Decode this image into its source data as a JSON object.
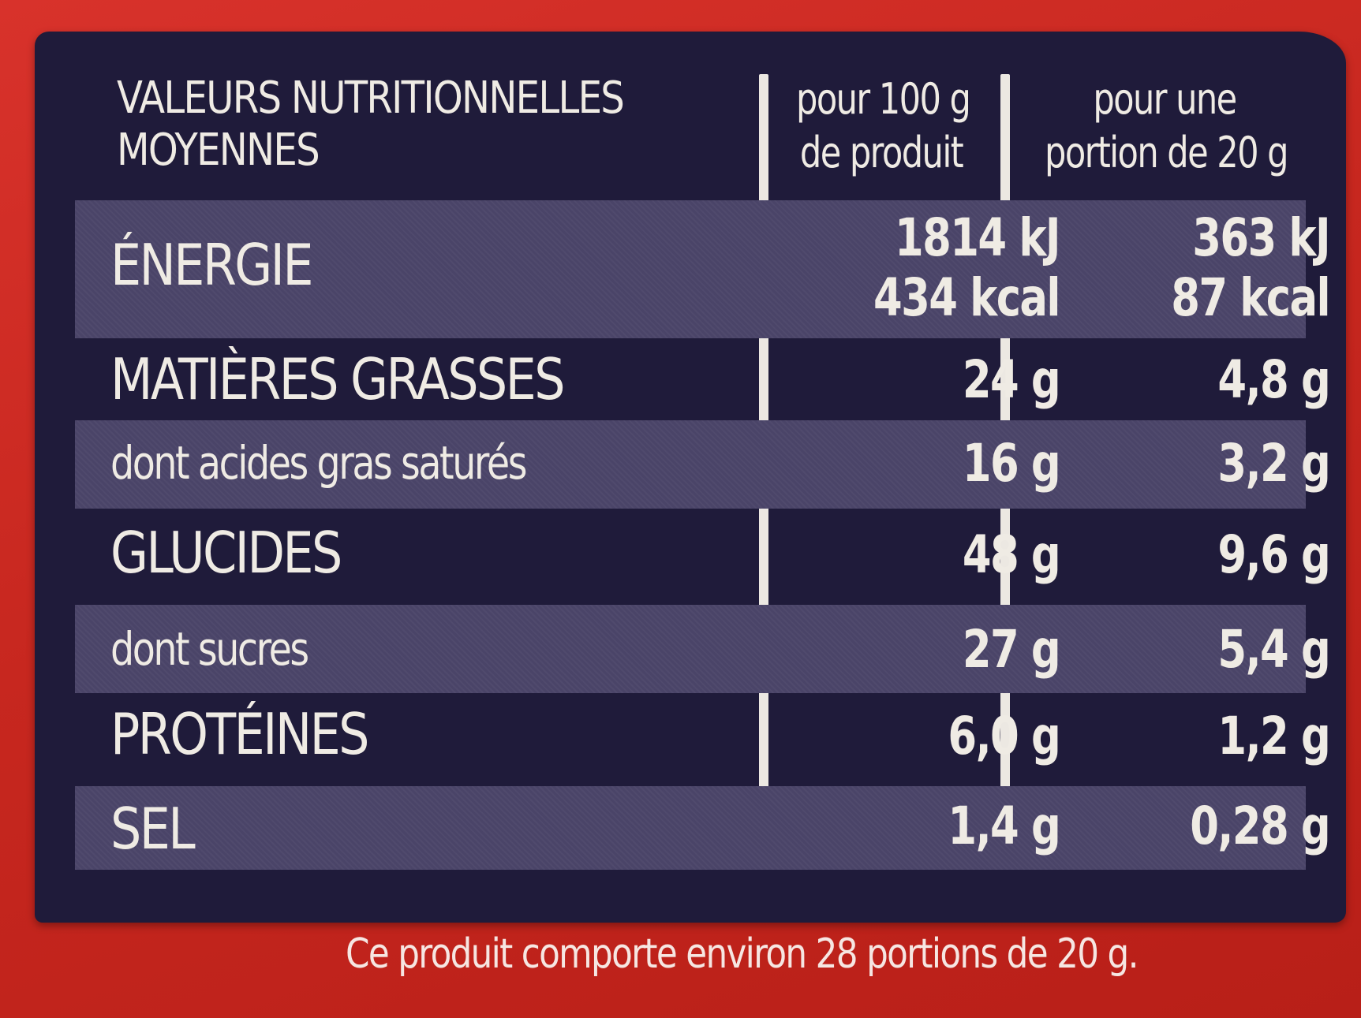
{
  "table": {
    "header": {
      "title_line1": "VALEURS NUTRITIONNELLES",
      "title_line2": "MOYENNES",
      "col1_line1": "pour 100 g",
      "col1_line2": "de produit",
      "col2_line1": "pour une",
      "col2_line2": "portion de 20 g"
    },
    "rows": [
      {
        "name": "ÉNERGIE",
        "per100_line1": "1814 kJ",
        "per100_line2": "434 kcal",
        "perPortion_line1": "363 kJ",
        "perPortion_line2": "87 kcal"
      },
      {
        "name": "MATIÈRES GRASSES",
        "per100": "24 g",
        "perPortion": "4,8 g"
      },
      {
        "name": "dont acides gras saturés",
        "per100": "16 g",
        "perPortion": "3,2 g"
      },
      {
        "name": "GLUCIDES",
        "per100": "48 g",
        "perPortion": "9,6 g"
      },
      {
        "name": "dont sucres",
        "per100": "27 g",
        "perPortion": "5,4 g"
      },
      {
        "name": "PROTÉINES",
        "per100": "6,0 g",
        "perPortion": "1,2 g"
      },
      {
        "name": "SEL",
        "per100": "1,4 g",
        "perPortion": "0,28 g"
      }
    ]
  },
  "footnote": "Ce produit comporte environ 28 portions de 20 g.",
  "colors": {
    "background_red": "#c7271f",
    "panel_navy": "#1f1b3a",
    "row_shade": "#4a4468",
    "text": "#efebe4"
  }
}
